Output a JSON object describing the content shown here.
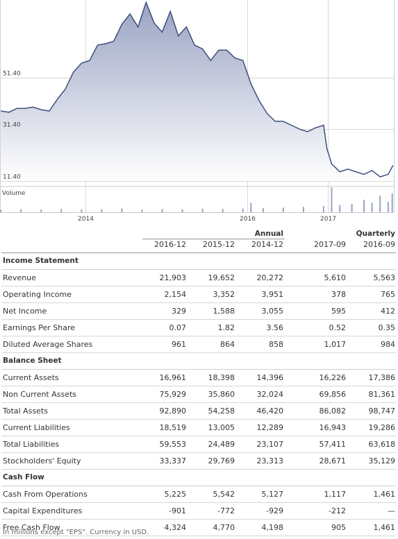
{
  "chart_data": [
    {
      "type": "area",
      "ylim": [
        11.4,
        81.4
      ],
      "y_ticks": [
        "51.40",
        "31.40",
        "11.40"
      ],
      "x_ticks": [
        "2014",
        "2016",
        "2017"
      ],
      "x_range": [
        2012.94,
        2017.82
      ],
      "grid": true,
      "line_color": "#3d4f7c",
      "fill_top_color": "#9aa3c3",
      "fill_bottom_color": "#ffffff",
      "x": [
        2012.95,
        2013.05,
        2013.15,
        2013.25,
        2013.35,
        2013.45,
        2013.55,
        2013.65,
        2013.75,
        2013.85,
        2013.95,
        2014.05,
        2014.15,
        2014.25,
        2014.35,
        2014.45,
        2014.55,
        2014.65,
        2014.75,
        2014.85,
        2014.95,
        2015.05,
        2015.15,
        2015.25,
        2015.35,
        2015.45,
        2015.55,
        2015.65,
        2015.75,
        2015.85,
        2015.95,
        2016.05,
        2016.15,
        2016.25,
        2016.35,
        2016.45,
        2016.55,
        2016.65,
        2016.75,
        2016.85,
        2016.95,
        2016.99,
        2017.05,
        2017.15,
        2017.25,
        2017.35,
        2017.45,
        2017.55,
        2017.65,
        2017.75,
        2017.81
      ],
      "values": [
        38.5,
        38.0,
        39.5,
        39.5,
        40.0,
        39.0,
        38.5,
        43.0,
        47.0,
        53.5,
        57.0,
        58.0,
        64.0,
        64.5,
        65.5,
        72.0,
        76.0,
        71.0,
        80.5,
        72.5,
        69.0,
        77.0,
        67.5,
        71.0,
        64.0,
        62.5,
        58.0,
        62.0,
        62.0,
        59.0,
        58.0,
        49.0,
        42.5,
        37.5,
        34.5,
        34.5,
        33.0,
        31.5,
        30.5,
        32.0,
        33.0,
        24.0,
        18.0,
        15.0,
        16.0,
        15.0,
        14.0,
        15.5,
        13.0,
        14.0,
        17.5
      ]
    },
    {
      "type": "bar",
      "title": "Volume",
      "x": [
        2012.95,
        2013.2,
        2013.45,
        2013.7,
        2013.95,
        2014.2,
        2014.45,
        2014.7,
        2014.95,
        2015.2,
        2015.45,
        2015.7,
        2015.95,
        2016.05,
        2016.2,
        2016.45,
        2016.7,
        2016.95,
        2017.05,
        2017.15,
        2017.3,
        2017.45,
        2017.55,
        2017.65,
        2017.75,
        2017.8
      ],
      "values": [
        1.2,
        1.5,
        1.3,
        1.6,
        1.4,
        1.5,
        1.8,
        1.4,
        1.6,
        1.5,
        1.7,
        1.6,
        1.8,
        4.5,
        2.0,
        2.2,
        2.6,
        3.0,
        12.0,
        3.5,
        4.0,
        6.0,
        4.5,
        8.0,
        5.0,
        9.0
      ]
    }
  ],
  "table": {
    "group_headers": {
      "annual": "Annual",
      "quarterly": "Quarterly"
    },
    "columns": [
      "2016-12",
      "2015-12",
      "2014-12",
      "2017-09",
      "2016-09"
    ],
    "sections": [
      {
        "title": "Income Statement",
        "rows": [
          {
            "label": "Revenue",
            "values": [
              "21,903",
              "19,652",
              "20,272",
              "5,610",
              "5,563"
            ]
          },
          {
            "label": "Operating Income",
            "values": [
              "2,154",
              "3,352",
              "3,951",
              "378",
              "765"
            ]
          },
          {
            "label": "Net Income",
            "values": [
              "329",
              "1,588",
              "3,055",
              "595",
              "412"
            ]
          },
          {
            "label": "Earnings Per Share",
            "values": [
              "0.07",
              "1.82",
              "3.56",
              "0.52",
              "0.35"
            ]
          },
          {
            "label": "Diluted Average Shares",
            "values": [
              "961",
              "864",
              "858",
              "1,017",
              "984"
            ]
          }
        ]
      },
      {
        "title": "Balance Sheet",
        "rows": [
          {
            "label": "Current Assets",
            "values": [
              "16,961",
              "18,398",
              "14,396",
              "16,226",
              "17,386"
            ]
          },
          {
            "label": "Non Current Assets",
            "values": [
              "75,929",
              "35,860",
              "32,024",
              "69,856",
              "81,361"
            ]
          },
          {
            "label": "Total Assets",
            "values": [
              "92,890",
              "54,258",
              "46,420",
              "86,082",
              "98,747"
            ]
          },
          {
            "label": "Current Liabilities",
            "values": [
              "18,519",
              "13,005",
              "12,289",
              "16,943",
              "19,286"
            ]
          },
          {
            "label": "Total Liabilities",
            "values": [
              "59,553",
              "24,489",
              "23,107",
              "57,411",
              "63,618"
            ]
          },
          {
            "label": "Stockholders' Equity",
            "values": [
              "33,337",
              "29,769",
              "23,313",
              "28,671",
              "35,129"
            ]
          }
        ]
      },
      {
        "title": "Cash Flow",
        "rows": [
          {
            "label": "Cash From Operations",
            "values": [
              "5,225",
              "5,542",
              "5,127",
              "1,117",
              "1,461"
            ]
          },
          {
            "label": "Capital Expenditures",
            "values": [
              "-901",
              "-772",
              "-929",
              "-212",
              "—"
            ]
          },
          {
            "label": "Free Cash Flow",
            "values": [
              "4,324",
              "4,770",
              "4,198",
              "905",
              "1,461"
            ]
          }
        ]
      }
    ]
  },
  "footnote": "In millions except \"EPS\". Currency in USD."
}
